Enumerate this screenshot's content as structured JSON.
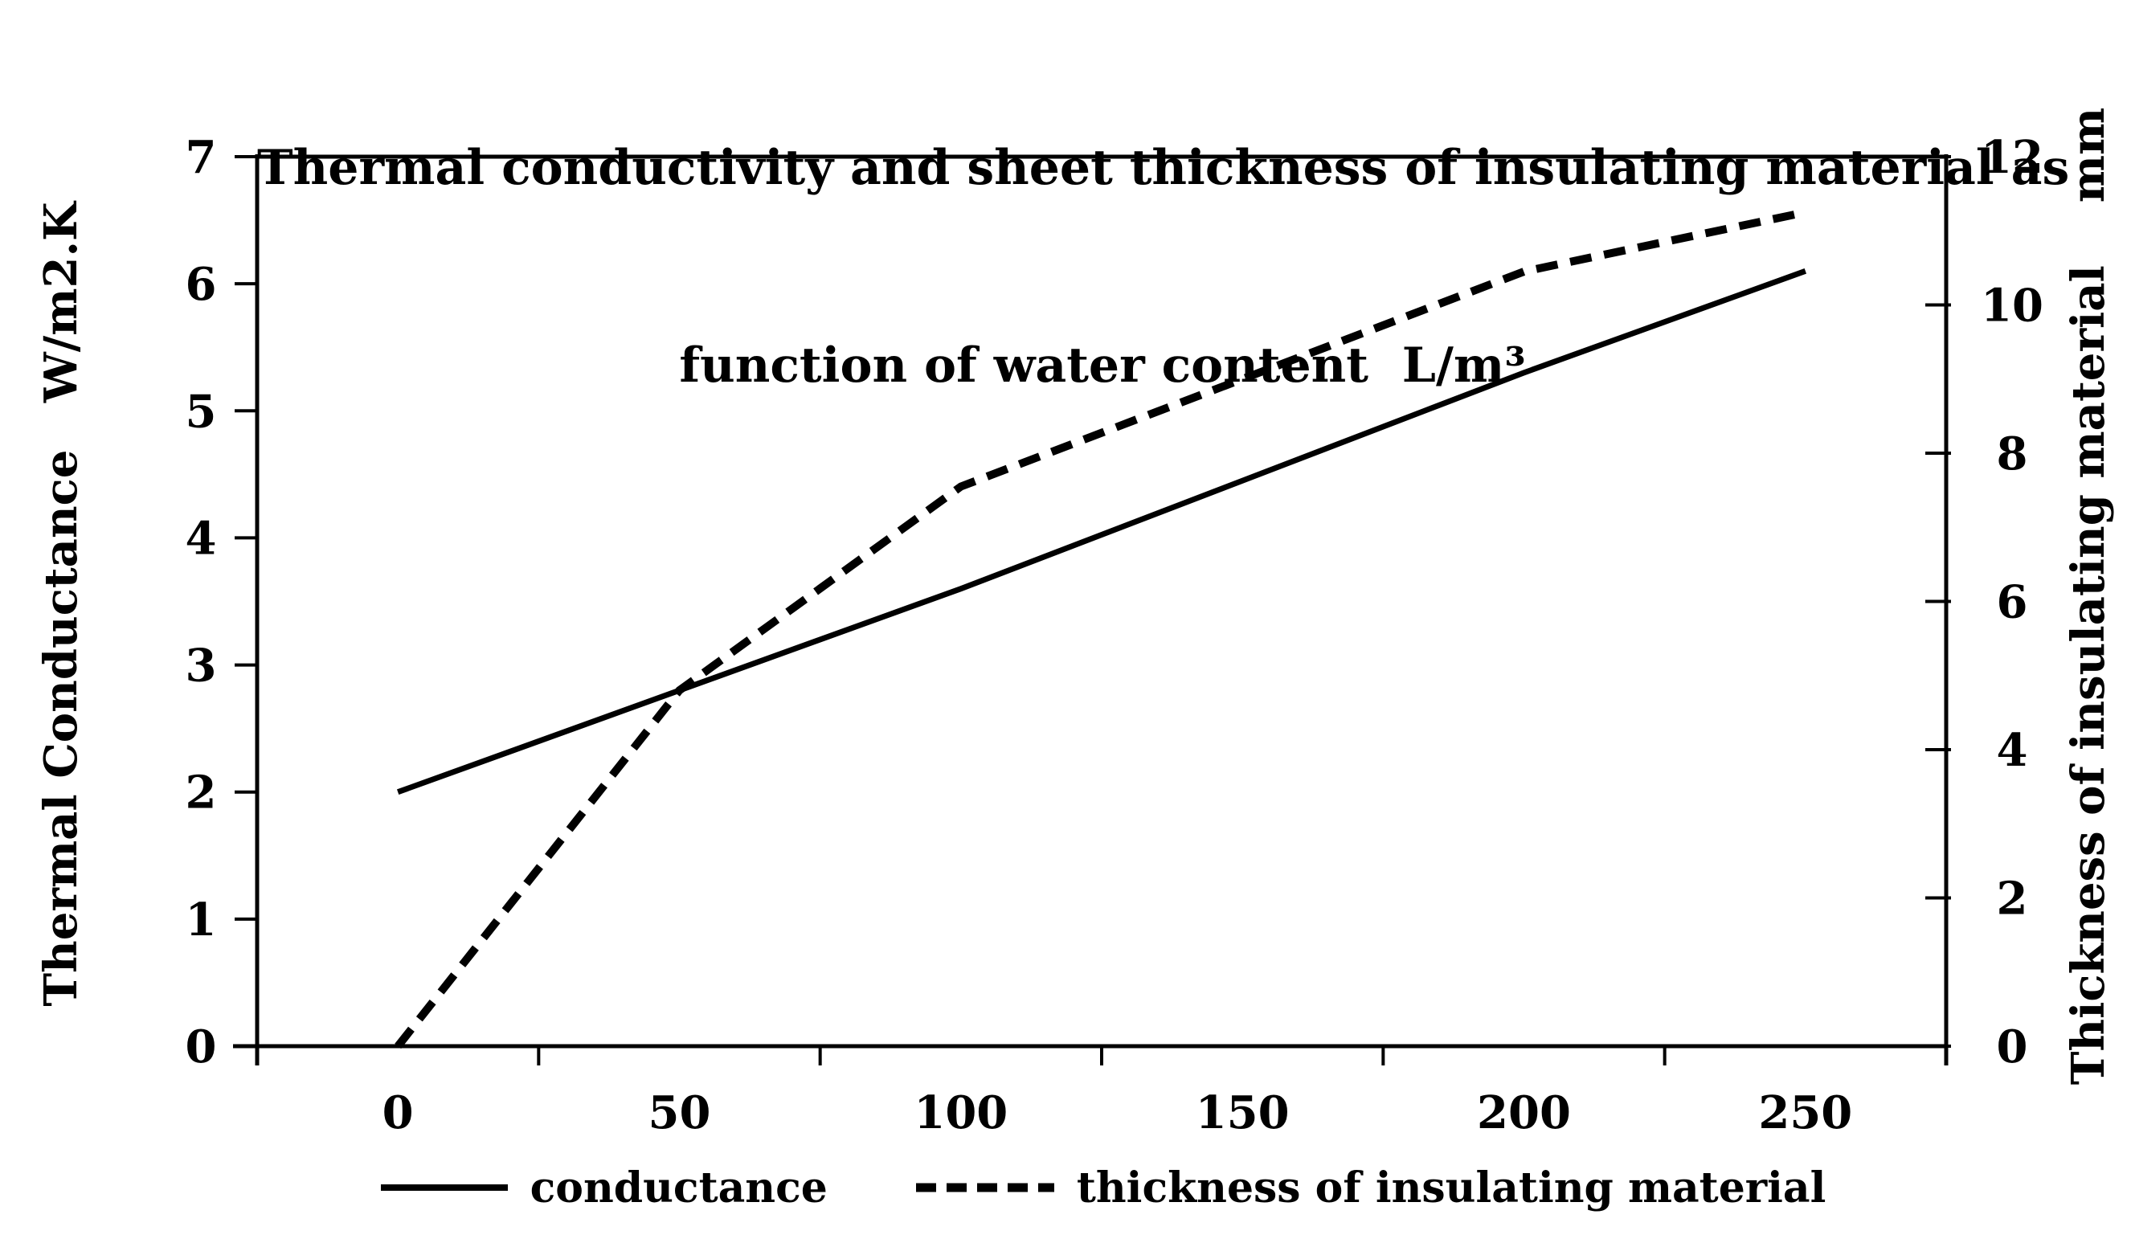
{
  "figure": {
    "background": "#ffffff",
    "foreground": "#000000"
  },
  "title": {
    "line1": "Thermal conductivity and sheet thickness of insulating material as",
    "line2": "function of water content  L/m³"
  },
  "axes": {
    "x": {
      "tick_labels": [
        "0",
        "50",
        "100",
        "150",
        "200",
        "250"
      ]
    },
    "left": {
      "title": "Thermal Conductance   W/m2.K",
      "tick_labels": [
        "0",
        "1",
        "2",
        "3",
        "4",
        "5",
        "6",
        "7"
      ],
      "range": [
        0,
        7
      ]
    },
    "right": {
      "title": "Thickness of insulating material    mm",
      "tick_labels": [
        "0",
        "2",
        "4",
        "6",
        "8",
        "10",
        "12"
      ],
      "range": [
        0,
        12
      ]
    }
  },
  "legend": {
    "items": [
      {
        "label": "conductance",
        "marker": "solid-line"
      },
      {
        "label": "thickness of insulating material",
        "marker": "dashed-line"
      }
    ]
  },
  "chart_data": {
    "type": "line",
    "title": "Thermal conductivity and sheet thickness of insulating material as function of water content L/m³",
    "x": [
      0,
      50,
      100,
      150,
      200,
      250
    ],
    "xlabel": "water content L/m³",
    "series": [
      {
        "name": "conductance",
        "axis": "left",
        "line_style": "solid",
        "values": [
          2.0,
          2.8,
          3.6,
          4.45,
          5.3,
          6.1
        ]
      },
      {
        "name": "thickness of insulating material",
        "axis": "right",
        "line_style": "dashed",
        "values": [
          0,
          4.8,
          7.55,
          9.0,
          10.45,
          11.25
        ]
      }
    ],
    "left_ylabel": "Thermal Conductance W/m2.K",
    "left_ylim": [
      0,
      7
    ],
    "right_ylabel": "Thickness of insulating material mm",
    "right_ylim": [
      0,
      12
    ],
    "grid": false,
    "legend_position": "bottom",
    "line_color": "#000000"
  }
}
